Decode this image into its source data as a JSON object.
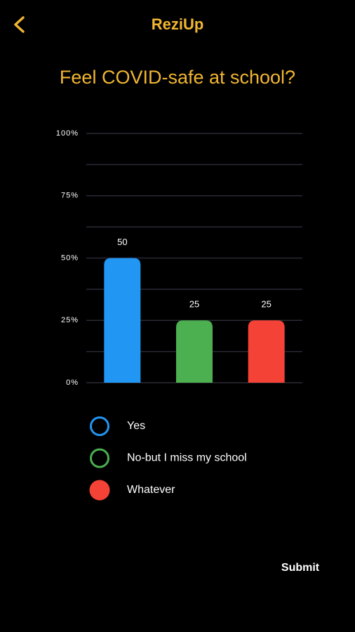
{
  "header": {
    "title": "ReziUp"
  },
  "chart_data": {
    "type": "bar",
    "title": "Feel COVID-safe at school?",
    "categories": [
      "Yes",
      "No-but I miss my school",
      "Whatever"
    ],
    "values": [
      50,
      25,
      25
    ],
    "colors": [
      "#2196f3",
      "#4caf50",
      "#f44336"
    ],
    "ylim": [
      0,
      100
    ],
    "yticks": [
      {
        "value": 0,
        "label": "0%"
      },
      {
        "value": 25,
        "label": "25%"
      },
      {
        "value": 50,
        "label": "50%"
      },
      {
        "value": 75,
        "label": "75%"
      },
      {
        "value": 100,
        "label": "100%"
      }
    ],
    "grid": true,
    "selected": 2
  },
  "submit": "Submit"
}
